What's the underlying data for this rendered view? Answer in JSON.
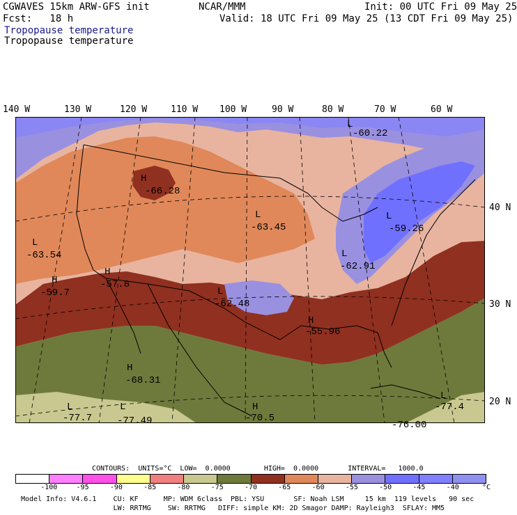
{
  "header": {
    "model": "CGWAVES 15km ARW-GFS init",
    "org": "NCAR/MMM",
    "init": "Init: 00 UTC Fri 09 May 25",
    "fcst": "Fcst:   18 h",
    "valid": "Valid: 18 UTC Fri 09 May 25 (13 CDT Fri 09 May 25)",
    "field_line1": "Tropopause temperature",
    "field_line2": "Tropopause temperature"
  },
  "longitude_labels": [
    "140 W",
    "130 W",
    "120 W",
    "110 W",
    "100 W",
    "90 W",
    "80 W",
    "70 W",
    "60 W"
  ],
  "latitude_labels": [
    "40 N",
    "30 N",
    "20 N"
  ],
  "map_labels": [
    {
      "name": "label-low-canada-ne",
      "letter": "L",
      "value": "-60.22"
    },
    {
      "name": "label-high-montana",
      "letter": "H",
      "value": "-66.28"
    },
    {
      "name": "label-low-dakotas",
      "letter": "L",
      "value": "-63.45"
    },
    {
      "name": "label-low-northeast",
      "letter": "L",
      "value": "-59.26"
    },
    {
      "name": "label-low-pacific",
      "letter": "L",
      "value": "-63.54"
    },
    {
      "name": "label-high-socal",
      "letter": "H",
      "value": "-59.7"
    },
    {
      "name": "label-high-arizona",
      "letter": "H",
      "value": "-57.8"
    },
    {
      "name": "label-low-texas",
      "letter": "L",
      "value": "-62.48"
    },
    {
      "name": "label-low-midatlantic",
      "letter": "L",
      "value": "-62.91"
    },
    {
      "name": "label-high-gulfcoast",
      "letter": "H",
      "value": "-55.96"
    },
    {
      "name": "label-high-mexico",
      "letter": "H",
      "value": "-68.31"
    },
    {
      "name": "label-low-sw-corner",
      "letter": "L",
      "value": "-77.7"
    },
    {
      "name": "label-low-mexico-south",
      "letter": "L",
      "value": "-77.49"
    },
    {
      "name": "label-high-gulf",
      "letter": "H",
      "value": "-70.5"
    },
    {
      "name": "label-low-caribbean",
      "letter": "L",
      "value": "-77.4"
    },
    {
      "name": "label-caribbean-partial",
      "letter": "",
      "value": "-76.00"
    }
  ],
  "contours_info": "CONTOURS:  UNITS=°C  LOW=  0.0000        HIGH=  0.0000       INTERVAL=   1000.0",
  "colorbar": {
    "colors": [
      "#ffffff",
      "#ff80ff",
      "#ff50e8",
      "#ffff90",
      "#f08080",
      "#c8c890",
      "#6e7a3c",
      "#903020",
      "#e0885a",
      "#e8b4a0",
      "#9a90e0",
      "#7070ff",
      "#8080ff",
      "#9090f0"
    ],
    "labels": [
      "-100",
      "-95",
      "-90",
      "-85",
      "-80",
      "-75",
      "-70",
      "-65",
      "-60",
      "-55",
      "-50",
      "-45",
      "-40",
      "°C"
    ]
  },
  "model_info_line1": "Model Info: V4.6.1    CU: KF      MP: WDM 6class  PBL: YSU       SF: Noah LSM     15 km  119 levels   90 sec",
  "model_info_line2": "                      LW: RRTMG    SW: RRTMG   DIFF: simple KM: 2D Smagor DAMP: Rayleigh3  SFLAY: MM5"
}
